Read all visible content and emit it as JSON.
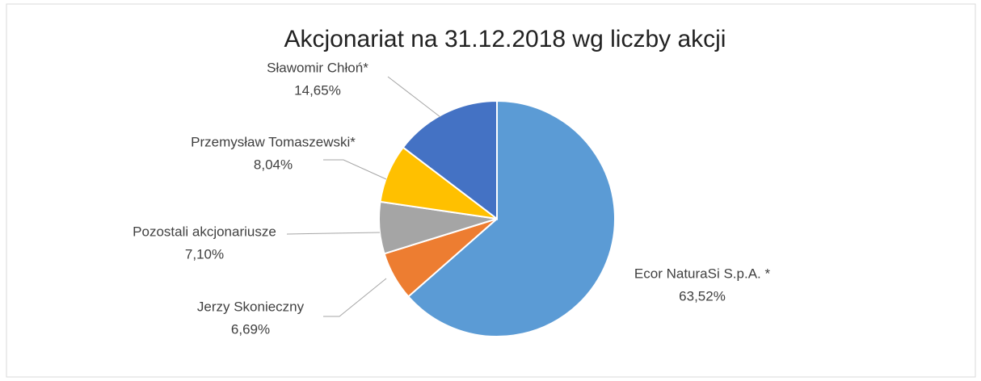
{
  "chart_data": {
    "type": "pie",
    "title": "Akcjonariat na 31.12.2018 wg liczby akcji",
    "categories": [
      "Ecor NaturaSi S.p.A. *",
      "Jerzy Skonieczny",
      "Pozostali akcjonariusze",
      "Przemysław Tomaszewski*",
      "Sławomir Chłoń*"
    ],
    "values": [
      63.52,
      6.69,
      7.1,
      8.04,
      14.65
    ],
    "value_labels": [
      "63,52%",
      "6,69%",
      "7,10%",
      "8,04%",
      "14,65%"
    ],
    "colors": [
      "#5b9bd5",
      "#ed7d31",
      "#a5a5a5",
      "#ffc000",
      "#4472c4"
    ]
  }
}
